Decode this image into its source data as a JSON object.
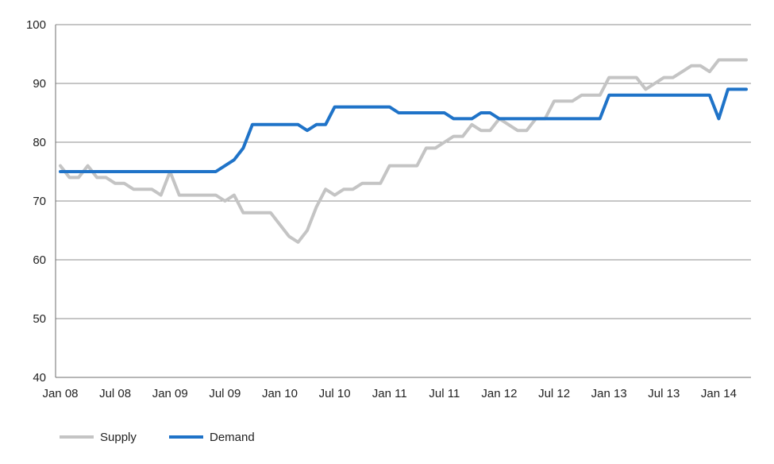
{
  "chart_data": {
    "type": "line",
    "title": "",
    "xlabel": "",
    "ylabel": "",
    "ylim": [
      40,
      100
    ],
    "yticks": [
      40,
      50,
      60,
      70,
      80,
      90,
      100
    ],
    "x_tick_labels": [
      "Jan 08",
      "Jul 08",
      "Jan 09",
      "Jul 09",
      "Jan 10",
      "Jul 10",
      "Jan 11",
      "Jul 11",
      "Jan 12",
      "Jul 12",
      "Jan 13",
      "Jul 13",
      "Jan 14"
    ],
    "x_start": "Jan 08",
    "x_end": "Apr 14",
    "grid": "horizontal",
    "legend": "bottom-left",
    "series": [
      {
        "name": "Supply",
        "color": "#c4c4c4",
        "values": [
          76,
          74,
          74,
          76,
          74,
          74,
          73,
          73,
          72,
          72,
          72,
          71,
          75,
          71,
          71,
          71,
          71,
          71,
          70,
          71,
          68,
          68,
          68,
          68,
          66,
          64,
          63,
          65,
          69,
          72,
          71,
          72,
          72,
          73,
          73,
          73,
          76,
          76,
          76,
          76,
          79,
          79,
          80,
          81,
          81,
          83,
          82,
          82,
          84,
          83,
          82,
          82,
          84,
          84,
          87,
          87,
          87,
          88,
          88,
          88,
          91,
          91,
          91,
          91,
          89,
          90,
          91,
          91,
          92,
          93,
          93,
          92,
          94,
          94,
          94,
          94
        ]
      },
      {
        "name": "Demand",
        "color": "#1f73c8",
        "values": [
          75,
          75,
          75,
          75,
          75,
          75,
          75,
          75,
          75,
          75,
          75,
          75,
          75,
          75,
          75,
          75,
          75,
          75,
          76,
          77,
          79,
          83,
          83,
          83,
          83,
          83,
          83,
          82,
          83,
          83,
          86,
          86,
          86,
          86,
          86,
          86,
          86,
          85,
          85,
          85,
          85,
          85,
          85,
          84,
          84,
          84,
          85,
          85,
          84,
          84,
          84,
          84,
          84,
          84,
          84,
          84,
          84,
          84,
          84,
          84,
          88,
          88,
          88,
          88,
          88,
          88,
          88,
          88,
          88,
          88,
          88,
          88,
          84,
          89,
          89,
          89
        ]
      }
    ]
  }
}
